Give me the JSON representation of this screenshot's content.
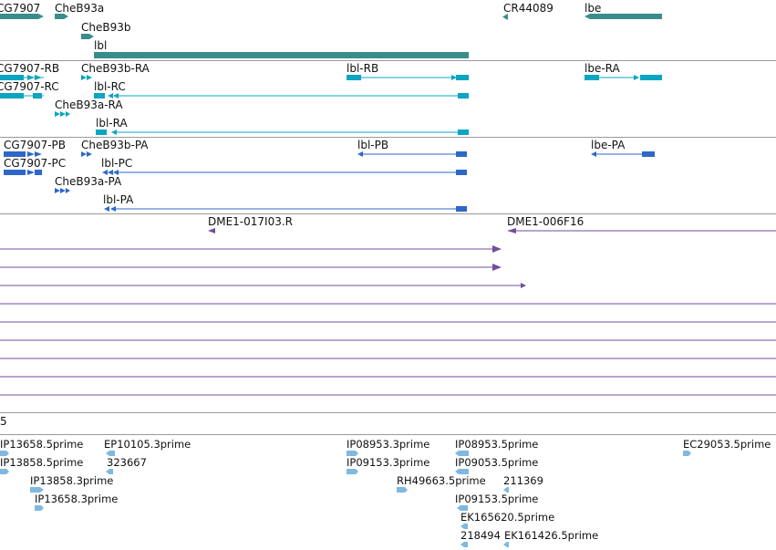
{
  "colors": {
    "gene": "#3a8d8a",
    "mrna": "#0aa5c0",
    "protein": "#2f67c8",
    "clone": "#6f4f9e",
    "est": "#7fb8e0",
    "divider": "#9a9a9a"
  },
  "tracks": {
    "genes": {
      "labels": [
        "CG7907",
        "CheB93a",
        "CheB93b",
        "lbl",
        "CR44089",
        "lbe"
      ]
    },
    "transcripts": {
      "labels": [
        "CG7907-RB",
        "CheB93b-RA",
        "lbl-RB",
        "lbe-RA",
        "CG7907-RC",
        "lbl-RC",
        "CheB93a-RA",
        "lbl-RA"
      ]
    },
    "proteins": {
      "labels": [
        "CG7907-PB",
        "CheB93b-PA",
        "lbl-PB",
        "lbe-PA",
        "CG7907-PC",
        "lbl-PC",
        "CheB93a-PA",
        "lbl-PA"
      ]
    },
    "clones": {
      "labels": [
        "DME1-017I03.R",
        "DME1-006F16"
      ],
      "cut_label": "5"
    },
    "ests": {
      "labels": [
        "IP13658.5prime",
        "EP10105.3prime",
        "IP08953.3prime",
        "IP08953.5prime",
        "EC29053.5prime",
        "IP13858.5prime",
        "323667",
        "IP09153.3prime",
        "IP09053.5prime",
        "IP13858.3prime",
        "RH49663.5prime",
        "211369",
        "IP13658.3prime",
        "IP09153.5prime",
        "EK165620.5prime",
        "218494",
        "EK161426.5prime"
      ]
    }
  }
}
